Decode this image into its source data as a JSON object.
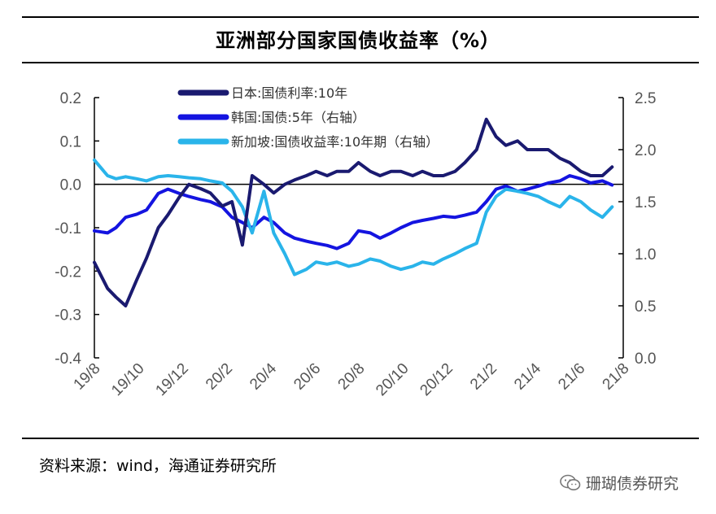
{
  "chart_data": {
    "type": "line",
    "title": "亚洲部分国家国债收益率（%）",
    "x_ticks": [
      "19/8",
      "19/10",
      "19/12",
      "20/2",
      "20/4",
      "20/6",
      "20/8",
      "20/10",
      "20/12",
      "21/2",
      "21/4",
      "21/6",
      "21/8"
    ],
    "y_left": {
      "min": -0.4,
      "max": 0.2,
      "ticks": [
        "0.2",
        "0.1",
        "0.0",
        "-0.1",
        "-0.2",
        "-0.3",
        "-0.4"
      ]
    },
    "y_right": {
      "min": 0.0,
      "max": 2.5,
      "ticks": [
        "2.5",
        "2.0",
        "1.5",
        "1.0",
        "0.5",
        "0.0"
      ]
    },
    "grid": false,
    "legend_position": "top-left",
    "series": [
      {
        "name": "日本:国债利率:10年",
        "axis": "left",
        "color": "#1a1a70",
        "points": [
          [
            "2019-08",
            -0.18
          ],
          [
            "2019-08-20",
            -0.24
          ],
          [
            "2019-09",
            -0.26
          ],
          [
            "2019-09-15",
            -0.28
          ],
          [
            "2019-10",
            -0.22
          ],
          [
            "2019-10-15",
            -0.17
          ],
          [
            "2019-11",
            -0.1
          ],
          [
            "2019-11-15",
            -0.07
          ],
          [
            "2019-12",
            -0.03
          ],
          [
            "2019-12-15",
            0.0
          ],
          [
            "2020-01",
            -0.01
          ],
          [
            "2020-01-15",
            -0.02
          ],
          [
            "2020-02",
            -0.05
          ],
          [
            "2020-02-15",
            -0.04
          ],
          [
            "2020-03",
            -0.14
          ],
          [
            "2020-03-15",
            0.02
          ],
          [
            "2020-04",
            0.0
          ],
          [
            "2020-04-15",
            -0.02
          ],
          [
            "2020-05",
            0.0
          ],
          [
            "2020-05-15",
            0.01
          ],
          [
            "2020-06",
            0.02
          ],
          [
            "2020-06-15",
            0.03
          ],
          [
            "2020-07",
            0.02
          ],
          [
            "2020-07-15",
            0.03
          ],
          [
            "2020-08",
            0.03
          ],
          [
            "2020-08-15",
            0.05
          ],
          [
            "2020-09",
            0.03
          ],
          [
            "2020-09-15",
            0.02
          ],
          [
            "2020-10",
            0.03
          ],
          [
            "2020-10-15",
            0.03
          ],
          [
            "2020-11",
            0.02
          ],
          [
            "2020-11-15",
            0.03
          ],
          [
            "2020-12",
            0.02
          ],
          [
            "2020-12-15",
            0.02
          ],
          [
            "2021-01",
            0.03
          ],
          [
            "2021-01-15",
            0.05
          ],
          [
            "2021-02",
            0.08
          ],
          [
            "2021-02-15",
            0.15
          ],
          [
            "2021-03",
            0.11
          ],
          [
            "2021-03-15",
            0.09
          ],
          [
            "2021-04",
            0.1
          ],
          [
            "2021-04-15",
            0.08
          ],
          [
            "2021-05",
            0.08
          ],
          [
            "2021-05-15",
            0.08
          ],
          [
            "2021-06",
            0.06
          ],
          [
            "2021-06-15",
            0.05
          ],
          [
            "2021-07",
            0.03
          ],
          [
            "2021-07-15",
            0.02
          ],
          [
            "2021-08",
            0.02
          ],
          [
            "2021-08-15",
            0.04
          ]
        ]
      },
      {
        "name": "韩国:国债:5年（右轴）",
        "axis": "right",
        "color": "#1414e0",
        "points": [
          [
            "2019-08",
            1.22
          ],
          [
            "2019-08-20",
            1.2
          ],
          [
            "2019-09",
            1.25
          ],
          [
            "2019-09-15",
            1.35
          ],
          [
            "2019-10",
            1.38
          ],
          [
            "2019-10-15",
            1.42
          ],
          [
            "2019-11",
            1.58
          ],
          [
            "2019-11-15",
            1.62
          ],
          [
            "2019-12",
            1.58
          ],
          [
            "2019-12-15",
            1.55
          ],
          [
            "2020-01",
            1.52
          ],
          [
            "2020-01-15",
            1.5
          ],
          [
            "2020-02",
            1.45
          ],
          [
            "2020-02-15",
            1.35
          ],
          [
            "2020-03",
            1.3
          ],
          [
            "2020-03-15",
            1.25
          ],
          [
            "2020-04",
            1.35
          ],
          [
            "2020-04-15",
            1.3
          ],
          [
            "2020-05",
            1.2
          ],
          [
            "2020-05-15",
            1.15
          ],
          [
            "2020-06",
            1.12
          ],
          [
            "2020-06-15",
            1.1
          ],
          [
            "2020-07",
            1.08
          ],
          [
            "2020-07-15",
            1.05
          ],
          [
            "2020-08",
            1.1
          ],
          [
            "2020-08-15",
            1.22
          ],
          [
            "2020-09",
            1.2
          ],
          [
            "2020-09-15",
            1.15
          ],
          [
            "2020-10",
            1.2
          ],
          [
            "2020-10-15",
            1.25
          ],
          [
            "2020-11",
            1.3
          ],
          [
            "2020-11-15",
            1.32
          ],
          [
            "2020-12",
            1.34
          ],
          [
            "2020-12-15",
            1.36
          ],
          [
            "2021-01",
            1.35
          ],
          [
            "2021-01-15",
            1.37
          ],
          [
            "2021-02",
            1.4
          ],
          [
            "2021-02-15",
            1.5
          ],
          [
            "2021-03",
            1.62
          ],
          [
            "2021-03-15",
            1.65
          ],
          [
            "2021-04",
            1.6
          ],
          [
            "2021-04-15",
            1.62
          ],
          [
            "2021-05",
            1.65
          ],
          [
            "2021-05-15",
            1.68
          ],
          [
            "2021-06",
            1.7
          ],
          [
            "2021-06-15",
            1.75
          ],
          [
            "2021-07",
            1.72
          ],
          [
            "2021-07-15",
            1.68
          ],
          [
            "2021-08",
            1.7
          ],
          [
            "2021-08-15",
            1.66
          ]
        ]
      },
      {
        "name": "新加坡:国债收益率:10年期（右轴）",
        "axis": "right",
        "color": "#2ab4ea",
        "points": [
          [
            "2019-08",
            1.9
          ],
          [
            "2019-08-20",
            1.75
          ],
          [
            "2019-09",
            1.72
          ],
          [
            "2019-09-15",
            1.74
          ],
          [
            "2019-10",
            1.72
          ],
          [
            "2019-10-15",
            1.7
          ],
          [
            "2019-11",
            1.74
          ],
          [
            "2019-11-15",
            1.75
          ],
          [
            "2019-12",
            1.74
          ],
          [
            "2019-12-15",
            1.73
          ],
          [
            "2020-01",
            1.72
          ],
          [
            "2020-01-15",
            1.7
          ],
          [
            "2020-02",
            1.68
          ],
          [
            "2020-02-15",
            1.6
          ],
          [
            "2020-03",
            1.45
          ],
          [
            "2020-03-15",
            1.2
          ],
          [
            "2020-04",
            1.6
          ],
          [
            "2020-04-15",
            1.2
          ],
          [
            "2020-05",
            1.0
          ],
          [
            "2020-05-15",
            0.8
          ],
          [
            "2020-06",
            0.85
          ],
          [
            "2020-06-15",
            0.92
          ],
          [
            "2020-07",
            0.9
          ],
          [
            "2020-07-15",
            0.92
          ],
          [
            "2020-08",
            0.88
          ],
          [
            "2020-08-15",
            0.9
          ],
          [
            "2020-09",
            0.95
          ],
          [
            "2020-09-15",
            0.93
          ],
          [
            "2020-10",
            0.88
          ],
          [
            "2020-10-15",
            0.85
          ],
          [
            "2020-11",
            0.88
          ],
          [
            "2020-11-15",
            0.92
          ],
          [
            "2020-12",
            0.9
          ],
          [
            "2020-12-15",
            0.95
          ],
          [
            "2021-01",
            1.0
          ],
          [
            "2021-01-15",
            1.05
          ],
          [
            "2021-02",
            1.1
          ],
          [
            "2021-02-15",
            1.4
          ],
          [
            "2021-03",
            1.55
          ],
          [
            "2021-03-15",
            1.62
          ],
          [
            "2021-04",
            1.6
          ],
          [
            "2021-04-15",
            1.58
          ],
          [
            "2021-05",
            1.55
          ],
          [
            "2021-05-15",
            1.5
          ],
          [
            "2021-06",
            1.45
          ],
          [
            "2021-06-15",
            1.55
          ],
          [
            "2021-07",
            1.5
          ],
          [
            "2021-07-15",
            1.42
          ],
          [
            "2021-08",
            1.35
          ],
          [
            "2021-08-15",
            1.45
          ]
        ]
      }
    ]
  },
  "source": "资料来源：wind，海通证券研究所",
  "watermark": "珊瑚债券研究",
  "watermark_icon": "wechat-icon"
}
